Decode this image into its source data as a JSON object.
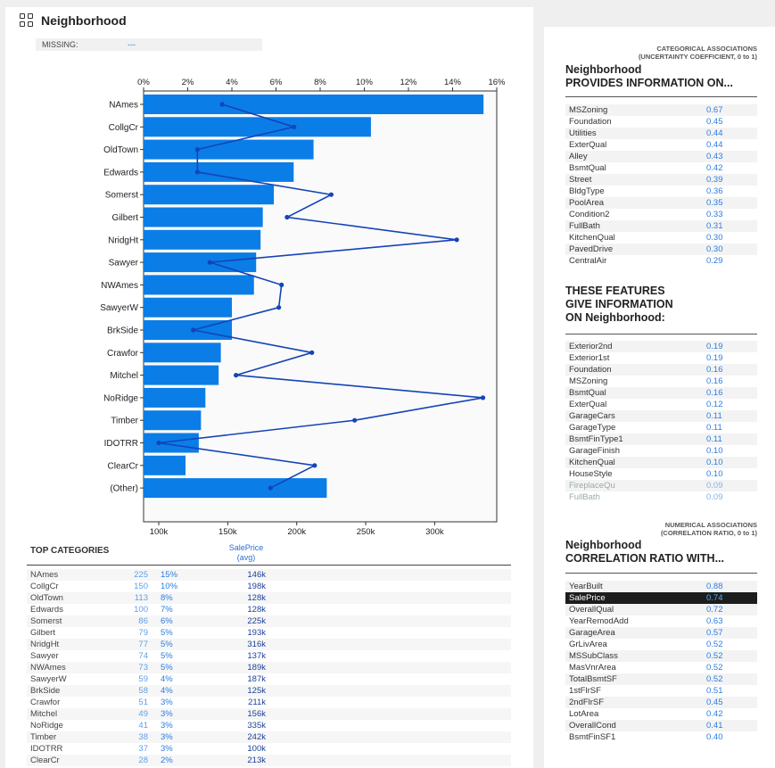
{
  "panel": {
    "title": "Neighborhood",
    "missing_label": "MISSING:",
    "missing_value": "---"
  },
  "chart_data": {
    "type": "bar",
    "categories": [
      "NAmes",
      "CollgCr",
      "OldTown",
      "Edwards",
      "Somerst",
      "Gilbert",
      "NridgHt",
      "Sawyer",
      "NWAmes",
      "SawyerW",
      "BrkSide",
      "Crawfor",
      "Mitchel",
      "NoRidge",
      "Timber",
      "IDOTRR",
      "ClearCr",
      "(Other)"
    ],
    "series": [
      {
        "values": [
          15.4,
          10.3,
          7.7,
          6.8,
          5.9,
          5.4,
          5.3,
          5.1,
          5.0,
          4.0,
          4.0,
          3.5,
          3.4,
          2.8,
          2.6,
          2.5,
          1.9,
          8.3
        ]
      },
      {
        "values": [
          146,
          198,
          128,
          128,
          225,
          193,
          316,
          137,
          189,
          187,
          125,
          211,
          156,
          335,
          242,
          100,
          213,
          181
        ]
      }
    ],
    "top_axis_ticks": [
      "0%",
      "2%",
      "4%",
      "6%",
      "8%",
      "10%",
      "12%",
      "14%",
      "16%"
    ],
    "xlim_top": [
      0,
      16
    ],
    "bottom_axis_ticks": [
      "100k",
      "150k",
      "200k",
      "250k",
      "300k"
    ],
    "bottom_tick_values": [
      100,
      150,
      200,
      250,
      300
    ],
    "xlim_bottom": [
      89,
      345
    ],
    "bar_color": "#0b7de6",
    "line_color": "#1444b8"
  },
  "top_categories": {
    "title": "TOP CATEGORIES",
    "saleprice_header": "SalePrice",
    "saleprice_sub": "(avg)",
    "rows": [
      {
        "name": "NAmes",
        "count": "225",
        "pct": "15%",
        "avg": "146k"
      },
      {
        "name": "CollgCr",
        "count": "150",
        "pct": "10%",
        "avg": "198k"
      },
      {
        "name": "OldTown",
        "count": "113",
        "pct": "8%",
        "avg": "128k"
      },
      {
        "name": "Edwards",
        "count": "100",
        "pct": "7%",
        "avg": "128k"
      },
      {
        "name": "Somerst",
        "count": "86",
        "pct": "6%",
        "avg": "225k"
      },
      {
        "name": "Gilbert",
        "count": "79",
        "pct": "5%",
        "avg": "193k"
      },
      {
        "name": "NridgHt",
        "count": "77",
        "pct": "5%",
        "avg": "316k"
      },
      {
        "name": "Sawyer",
        "count": "74",
        "pct": "5%",
        "avg": "137k"
      },
      {
        "name": "NWAmes",
        "count": "73",
        "pct": "5%",
        "avg": "189k"
      },
      {
        "name": "SawyerW",
        "count": "59",
        "pct": "4%",
        "avg": "187k"
      },
      {
        "name": "BrkSide",
        "count": "58",
        "pct": "4%",
        "avg": "125k"
      },
      {
        "name": "Crawfor",
        "count": "51",
        "pct": "3%",
        "avg": "211k"
      },
      {
        "name": "Mitchel",
        "count": "49",
        "pct": "3%",
        "avg": "156k"
      },
      {
        "name": "NoRidge",
        "count": "41",
        "pct": "3%",
        "avg": "335k"
      },
      {
        "name": "Timber",
        "count": "38",
        "pct": "3%",
        "avg": "242k"
      },
      {
        "name": "IDOTRR",
        "count": "37",
        "pct": "3%",
        "avg": "100k"
      },
      {
        "name": "ClearCr",
        "count": "28",
        "pct": "2%",
        "avg": "213k"
      }
    ]
  },
  "categorical": {
    "small_title_1": "CATEGORICAL ASSOCIATIONS",
    "small_title_2": "(UNCERTAINTY COEFFICIENT, 0 to 1)",
    "heading_1": "Neighborhood",
    "heading_2": "PROVIDES INFORMATION ON...",
    "rows": [
      {
        "name": "MSZoning",
        "value": "0.67"
      },
      {
        "name": "Foundation",
        "value": "0.45"
      },
      {
        "name": "Utilities",
        "value": "0.44"
      },
      {
        "name": "ExterQual",
        "value": "0.44"
      },
      {
        "name": "Alley",
        "value": "0.43"
      },
      {
        "name": "BsmtQual",
        "value": "0.42"
      },
      {
        "name": "Street",
        "value": "0.39"
      },
      {
        "name": "BldgType",
        "value": "0.36"
      },
      {
        "name": "PoolArea",
        "value": "0.35"
      },
      {
        "name": "Condition2",
        "value": "0.33"
      },
      {
        "name": "FullBath",
        "value": "0.31"
      },
      {
        "name": "KitchenQual",
        "value": "0.30"
      },
      {
        "name": "PavedDrive",
        "value": "0.30"
      },
      {
        "name": "CentralAir",
        "value": "0.29"
      }
    ]
  },
  "give_info": {
    "heading_1": "THESE FEATURES",
    "heading_2": "GIVE INFORMATION",
    "heading_3": "ON Neighborhood:",
    "rows": [
      {
        "name": "Exterior2nd",
        "value": "0.19"
      },
      {
        "name": "Exterior1st",
        "value": "0.19"
      },
      {
        "name": "Foundation",
        "value": "0.16"
      },
      {
        "name": "MSZoning",
        "value": "0.16"
      },
      {
        "name": "BsmtQual",
        "value": "0.16"
      },
      {
        "name": "ExterQual",
        "value": "0.12"
      },
      {
        "name": "GarageCars",
        "value": "0.11"
      },
      {
        "name": "GarageType",
        "value": "0.11"
      },
      {
        "name": "BsmtFinType1",
        "value": "0.11"
      },
      {
        "name": "GarageFinish",
        "value": "0.10"
      },
      {
        "name": "KitchenQual",
        "value": "0.10"
      },
      {
        "name": "HouseStyle",
        "value": "0.10"
      },
      {
        "name": "FireplaceQu",
        "value": "0.09",
        "muted": true
      },
      {
        "name": "FullBath",
        "value": "0.09",
        "muted": true
      }
    ]
  },
  "numerical": {
    "small_title_1": "NUMERICAL ASSOCIATIONS",
    "small_title_2": "(CORRELATION RATIO, 0 to 1)",
    "heading_1": "Neighborhood",
    "heading_2": "CORRELATION RATIO WITH...",
    "rows": [
      {
        "name": "YearBuilt",
        "value": "0.88"
      },
      {
        "name": "SalePrice",
        "value": "0.74",
        "highlight": true
      },
      {
        "name": "OverallQual",
        "value": "0.72"
      },
      {
        "name": "YearRemodAdd",
        "value": "0.63"
      },
      {
        "name": "GarageArea",
        "value": "0.57"
      },
      {
        "name": "GrLivArea",
        "value": "0.52"
      },
      {
        "name": "MSSubClass",
        "value": "0.52"
      },
      {
        "name": "MasVnrArea",
        "value": "0.52"
      },
      {
        "name": "TotalBsmtSF",
        "value": "0.52"
      },
      {
        "name": "1stFlrSF",
        "value": "0.51"
      },
      {
        "name": "2ndFlrSF",
        "value": "0.45"
      },
      {
        "name": "LotArea",
        "value": "0.42"
      },
      {
        "name": "OverallCond",
        "value": "0.41"
      },
      {
        "name": "BsmtFinSF1",
        "value": "0.40"
      }
    ]
  }
}
